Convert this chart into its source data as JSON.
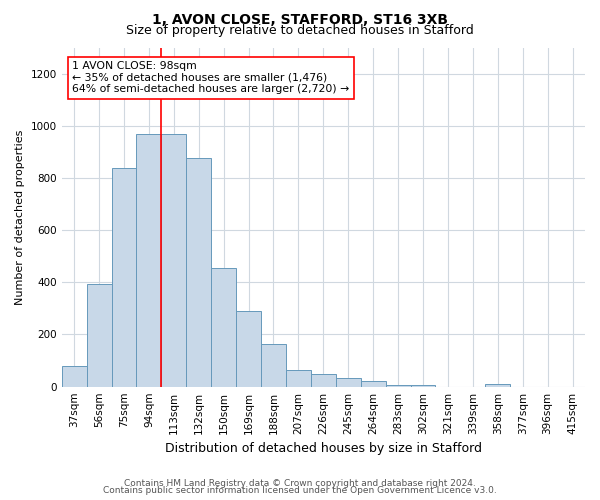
{
  "title": "1, AVON CLOSE, STAFFORD, ST16 3XB",
  "subtitle": "Size of property relative to detached houses in Stafford",
  "xlabel": "Distribution of detached houses by size in Stafford",
  "ylabel": "Number of detached properties",
  "categories": [
    "37sqm",
    "56sqm",
    "75sqm",
    "94sqm",
    "113sqm",
    "132sqm",
    "150sqm",
    "169sqm",
    "188sqm",
    "207sqm",
    "226sqm",
    "245sqm",
    "264sqm",
    "283sqm",
    "302sqm",
    "321sqm",
    "339sqm",
    "358sqm",
    "377sqm",
    "396sqm",
    "415sqm"
  ],
  "values": [
    80,
    395,
    840,
    970,
    970,
    875,
    455,
    290,
    165,
    65,
    50,
    32,
    22,
    5,
    5,
    0,
    0,
    10,
    0,
    0,
    0
  ],
  "bar_color": "#c8d8e8",
  "bar_edge_color": "#6699bb",
  "red_line_index": 3.5,
  "annotation_line1": "1 AVON CLOSE: 98sqm",
  "annotation_line2": "← 35% of detached houses are smaller (1,476)",
  "annotation_line3": "64% of semi-detached houses are larger (2,720) →",
  "ylim": [
    0,
    1300
  ],
  "yticks": [
    0,
    200,
    400,
    600,
    800,
    1000,
    1200
  ],
  "footer1": "Contains HM Land Registry data © Crown copyright and database right 2024.",
  "footer2": "Contains public sector information licensed under the Open Government Licence v3.0.",
  "bg_color": "#ffffff",
  "grid_color": "#d0d8e0",
  "title_fontsize": 10,
  "subtitle_fontsize": 9,
  "xlabel_fontsize": 9,
  "ylabel_fontsize": 8,
  "tick_fontsize": 7.5,
  "footer_fontsize": 6.5
}
